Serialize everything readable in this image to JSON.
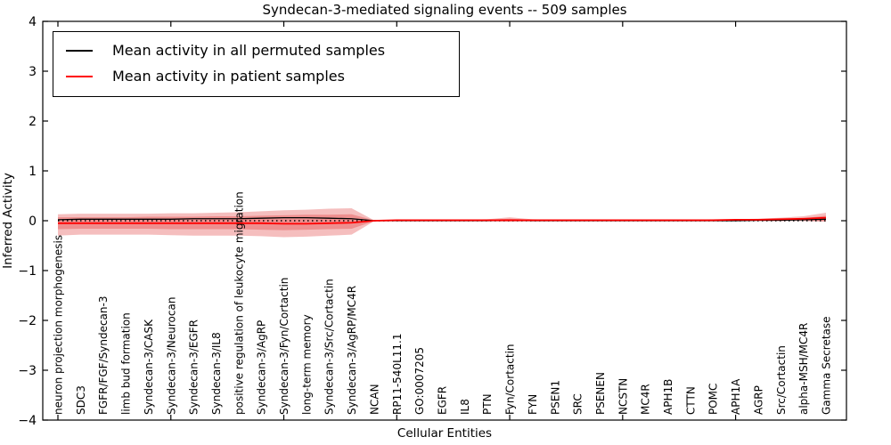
{
  "figure": {
    "title": "Syndecan-3-mediated signaling events -- 509 samples",
    "xlabel": "Cellular Entities",
    "ylabel": "Inferred Activity"
  },
  "legend": {
    "items": [
      {
        "label": "Mean activity in all permuted samples",
        "color": "#000000"
      },
      {
        "label": "Mean activity in patient samples",
        "color": "#ff0000"
      }
    ]
  },
  "chart_data": {
    "type": "line",
    "title": "Syndecan-3-mediated signaling events -- 509 samples",
    "xlabel": "Cellular Entities",
    "ylabel": "Inferred Activity",
    "ylim": [
      -4,
      4
    ],
    "yticks": [
      4,
      3,
      2,
      1,
      0,
      -1,
      -2,
      -3,
      -4
    ],
    "grid": false,
    "legend_position": "upper left",
    "zero_line": {
      "value": 0,
      "style": "dotted",
      "color": "#000000"
    },
    "band_color": "rgba(220,20,20,0.28)",
    "categories": [
      "neuron projection morphogenesis",
      "SDC3",
      "FGFR/FGF/Syndecan-3",
      "limb bud formation",
      "Syndecan-3/CASK",
      "Syndecan-3/Neurocan",
      "Syndecan-3/EGFR",
      "Syndecan-3/IL8",
      "positive regulation of leukocyte migration",
      "Syndecan-3/AgRP",
      "Syndecan-3/Fyn/Cortactin",
      "long-term memory",
      "Syndecan-3/Src/Cortactin",
      "Syndecan-3/AgRP/MC4R",
      "NCAN",
      "RP11-540L11.1",
      "GO:0007205",
      "EGFR",
      "IL8",
      "PTN",
      "Fyn/Cortactin",
      "FYN",
      "PSEN1",
      "SRC",
      "PSENEN",
      "NCSTN",
      "MC4R",
      "APH1B",
      "CTTN",
      "POMC",
      "APH1A",
      "AGRP",
      "Src/Cortactin",
      "alpha-MSH/MC4R",
      "Gamma Secretase"
    ],
    "series": [
      {
        "name": "Mean activity in all permuted samples",
        "color": "#000000",
        "width": 1.3,
        "values": [
          0.02,
          0.03,
          0.03,
          0.03,
          0.03,
          0.03,
          0.04,
          0.04,
          0.04,
          0.05,
          0.06,
          0.06,
          0.05,
          0.04,
          0.0,
          0.0,
          0.0,
          0.0,
          0.0,
          0.0,
          0.01,
          0.0,
          0.0,
          0.0,
          0.0,
          0.0,
          0.0,
          0.0,
          0.0,
          0.0,
          0.0,
          0.01,
          0.01,
          0.02,
          0.03
        ]
      },
      {
        "name": "Mean activity in patient samples",
        "color": "#ff0000",
        "width": 1.8,
        "values": [
          -0.05,
          -0.05,
          -0.05,
          -0.05,
          -0.05,
          -0.05,
          -0.05,
          -0.05,
          -0.05,
          -0.05,
          -0.06,
          -0.06,
          -0.05,
          -0.04,
          0.0,
          0.01,
          0.01,
          0.01,
          0.01,
          0.01,
          0.01,
          0.01,
          0.01,
          0.01,
          0.01,
          0.01,
          0.01,
          0.01,
          0.01,
          0.01,
          0.02,
          0.02,
          0.03,
          0.04,
          0.06
        ]
      }
    ],
    "bands": [
      {
        "name": "patient-band-outer",
        "top": [
          0.13,
          0.14,
          0.14,
          0.14,
          0.14,
          0.15,
          0.15,
          0.16,
          0.17,
          0.19,
          0.21,
          0.22,
          0.24,
          0.25,
          0.01,
          0.02,
          0.02,
          0.02,
          0.02,
          0.03,
          0.07,
          0.03,
          0.02,
          0.02,
          0.02,
          0.02,
          0.02,
          0.02,
          0.02,
          0.03,
          0.03,
          0.04,
          0.06,
          0.09,
          0.16
        ],
        "bottom": [
          -0.3,
          -0.28,
          -0.28,
          -0.28,
          -0.28,
          -0.29,
          -0.3,
          -0.3,
          -0.3,
          -0.31,
          -0.33,
          -0.32,
          -0.3,
          -0.28,
          -0.01,
          -0.01,
          -0.01,
          -0.01,
          -0.01,
          -0.01,
          -0.02,
          -0.01,
          -0.01,
          -0.01,
          -0.01,
          -0.01,
          -0.01,
          -0.01,
          -0.01,
          -0.01,
          -0.01,
          -0.01,
          -0.01,
          -0.01,
          -0.02
        ]
      },
      {
        "name": "patient-band-inner",
        "top": [
          0.07,
          0.07,
          0.07,
          0.07,
          0.08,
          0.08,
          0.08,
          0.09,
          0.09,
          0.1,
          0.11,
          0.12,
          0.12,
          0.13,
          0.01,
          0.01,
          0.01,
          0.01,
          0.01,
          0.02,
          0.04,
          0.02,
          0.01,
          0.01,
          0.01,
          0.01,
          0.01,
          0.01,
          0.01,
          0.02,
          0.02,
          0.02,
          0.03,
          0.05,
          0.1
        ],
        "bottom": [
          -0.17,
          -0.16,
          -0.16,
          -0.16,
          -0.16,
          -0.17,
          -0.17,
          -0.17,
          -0.17,
          -0.18,
          -0.19,
          -0.18,
          -0.17,
          -0.16,
          -0.01,
          -0.01,
          -0.01,
          -0.01,
          -0.01,
          -0.01,
          -0.01,
          -0.01,
          -0.01,
          -0.01,
          -0.01,
          -0.01,
          -0.01,
          -0.01,
          -0.01,
          -0.01,
          -0.01,
          0.0,
          0.0,
          0.0,
          -0.01
        ]
      }
    ]
  }
}
